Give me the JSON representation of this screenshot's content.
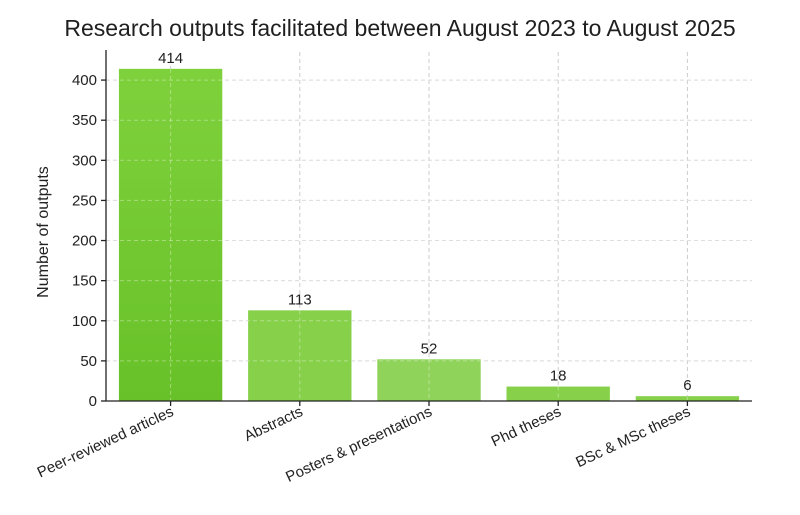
{
  "chart_data": {
    "type": "bar",
    "title": "Research outputs facilitated between August 2023 to August 2025",
    "xlabel": "",
    "ylabel": "Number of outputs",
    "categories": [
      "Peer-reviewed articles",
      "Abstracts",
      "Posters & presentations",
      "Phd theses",
      "BSc & MSc theses"
    ],
    "values": [
      414,
      113,
      52,
      18,
      6
    ],
    "data_labels": [
      "414",
      "113",
      "52",
      "18",
      "6"
    ],
    "ylim": [
      0,
      435
    ],
    "yticks": [
      0,
      50,
      100,
      150,
      200,
      250,
      300,
      350,
      400
    ],
    "ytick_labels": [
      "0",
      "50",
      "100",
      "150",
      "200",
      "250",
      "300",
      "350",
      "400"
    ],
    "grid": true,
    "colors": {
      "top_bar_light": "#7fd13c",
      "top_bar_dark": "#68c128",
      "bar": "#86d04a",
      "bar_light": "#8fd35a"
    }
  }
}
